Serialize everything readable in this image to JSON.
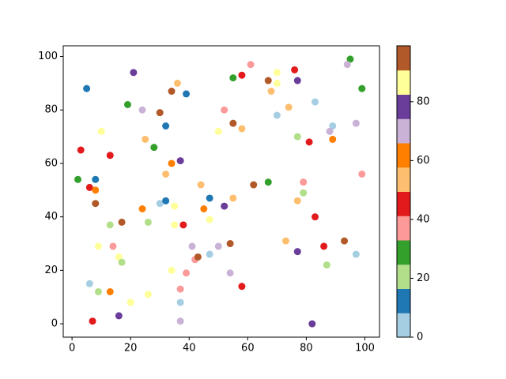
{
  "chart_data": {
    "type": "scatter",
    "x": [
      5,
      21,
      34,
      36,
      39,
      19,
      24,
      30,
      32,
      10,
      3,
      13,
      25,
      28,
      37,
      34,
      32,
      2,
      8,
      6,
      8,
      8,
      44,
      47,
      55,
      24,
      45,
      52,
      30,
      32,
      35,
      47,
      17,
      13,
      26,
      35,
      38,
      41,
      42,
      43,
      47,
      50,
      54,
      14,
      9,
      16,
      17,
      34,
      39,
      54,
      37,
      6,
      9,
      13,
      26,
      20,
      37,
      16,
      7,
      37,
      58,
      55,
      58,
      61,
      70,
      67,
      70,
      76,
      77,
      68,
      74,
      70,
      83,
      95,
      94,
      99,
      52,
      55,
      50,
      58,
      89,
      88,
      97,
      77,
      81,
      89,
      67,
      62,
      79,
      79,
      77,
      99,
      83,
      93,
      73,
      86,
      77,
      97,
      87,
      82
    ],
    "y": [
      88,
      94,
      87,
      90,
      86,
      82,
      80,
      79,
      74,
      72,
      65,
      63,
      69,
      66,
      61,
      60,
      56,
      54,
      54,
      51,
      50,
      45,
      52,
      47,
      47,
      43,
      43,
      44,
      45,
      46,
      44,
      39,
      38,
      37,
      38,
      37,
      37,
      29,
      24,
      25,
      26,
      29,
      30,
      29,
      29,
      25,
      23,
      20,
      19,
      19,
      13,
      15,
      12,
      12,
      11,
      8,
      8,
      3,
      1,
      1,
      14,
      92,
      93,
      97,
      94,
      91,
      90,
      95,
      91,
      87,
      81,
      78,
      83,
      99,
      97,
      88,
      80,
      75,
      72,
      73,
      74,
      72,
      75,
      70,
      68,
      69,
      53,
      52,
      53,
      49,
      46,
      56,
      40,
      31,
      31,
      29,
      27,
      26,
      22,
      0
    ],
    "c": [
      12,
      78,
      95,
      54,
      12,
      29,
      70,
      95,
      12,
      87,
      45,
      45,
      54,
      29,
      78,
      62,
      54,
      29,
      12,
      45,
      62,
      95,
      54,
      12,
      54,
      62,
      62,
      78,
      4,
      12,
      87,
      87,
      95,
      21,
      21,
      87,
      45,
      70,
      37,
      95,
      4,
      70,
      95,
      37,
      87,
      87,
      21,
      87,
      37,
      70,
      37,
      4,
      21,
      62,
      87,
      87,
      4,
      78,
      45,
      70,
      45,
      29,
      45,
      37,
      87,
      95,
      87,
      45,
      78,
      54,
      54,
      4,
      4,
      29,
      70,
      29,
      37,
      95,
      87,
      54,
      4,
      70,
      70,
      21,
      45,
      62,
      29,
      95,
      37,
      21,
      54,
      37,
      45,
      95,
      54,
      45,
      78,
      4,
      21,
      78
    ],
    "cmap": [
      "#a6cee3",
      "#1f78b4",
      "#b2df8a",
      "#33a02c",
      "#fb9a99",
      "#e31a1c",
      "#fdbf6f",
      "#ff7f00",
      "#cab2d6",
      "#6a3d9a",
      "#ffff99",
      "#b15928"
    ],
    "clim": [
      0,
      99
    ],
    "cticks": [
      0,
      20,
      40,
      60,
      80
    ],
    "xlim": [
      -3,
      105
    ],
    "ylim": [
      -5,
      104
    ],
    "xticks": [
      0,
      20,
      40,
      60,
      80,
      100
    ],
    "yticks": [
      0,
      20,
      40,
      60,
      80,
      100
    ]
  }
}
